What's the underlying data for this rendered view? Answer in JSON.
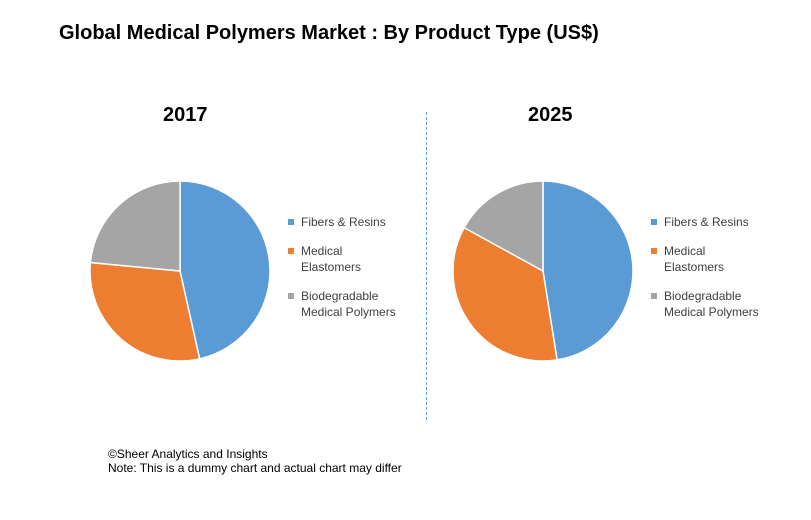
{
  "title": "Global Medical Polymers Market : By Product Type (US$)",
  "colors": {
    "fibers": "#5b9bd5",
    "elastomers": "#ed7d31",
    "biodegradable": "#a5a5a5"
  },
  "chart_data": [
    {
      "type": "pie",
      "title": "2017",
      "slices": [
        {
          "label": "Fibers & Resins",
          "value": 46.5,
          "color": "#5b9bd5"
        },
        {
          "label": "Medical\nElastomers",
          "value": 30.0,
          "color": "#ed7d31"
        },
        {
          "label": "Biodegradable\nMedical Polymers",
          "value": 23.5,
          "color": "#a5a5a5"
        }
      ],
      "legend_position": "right"
    },
    {
      "type": "pie",
      "title": "2025",
      "slices": [
        {
          "label": "Fibers & Resins",
          "value": 47.5,
          "color": "#5b9bd5"
        },
        {
          "label": "Medical\nElastomers",
          "value": 35.5,
          "color": "#ed7d31"
        },
        {
          "label": "Biodegradable\nMedical Polymers",
          "value": 17.0,
          "color": "#a5a5a5"
        }
      ],
      "legend_position": "right"
    }
  ],
  "footer": {
    "credit": "©Sheer Analytics and Insights",
    "note": "Note: This is a dummy chart and actual chart may differ"
  }
}
